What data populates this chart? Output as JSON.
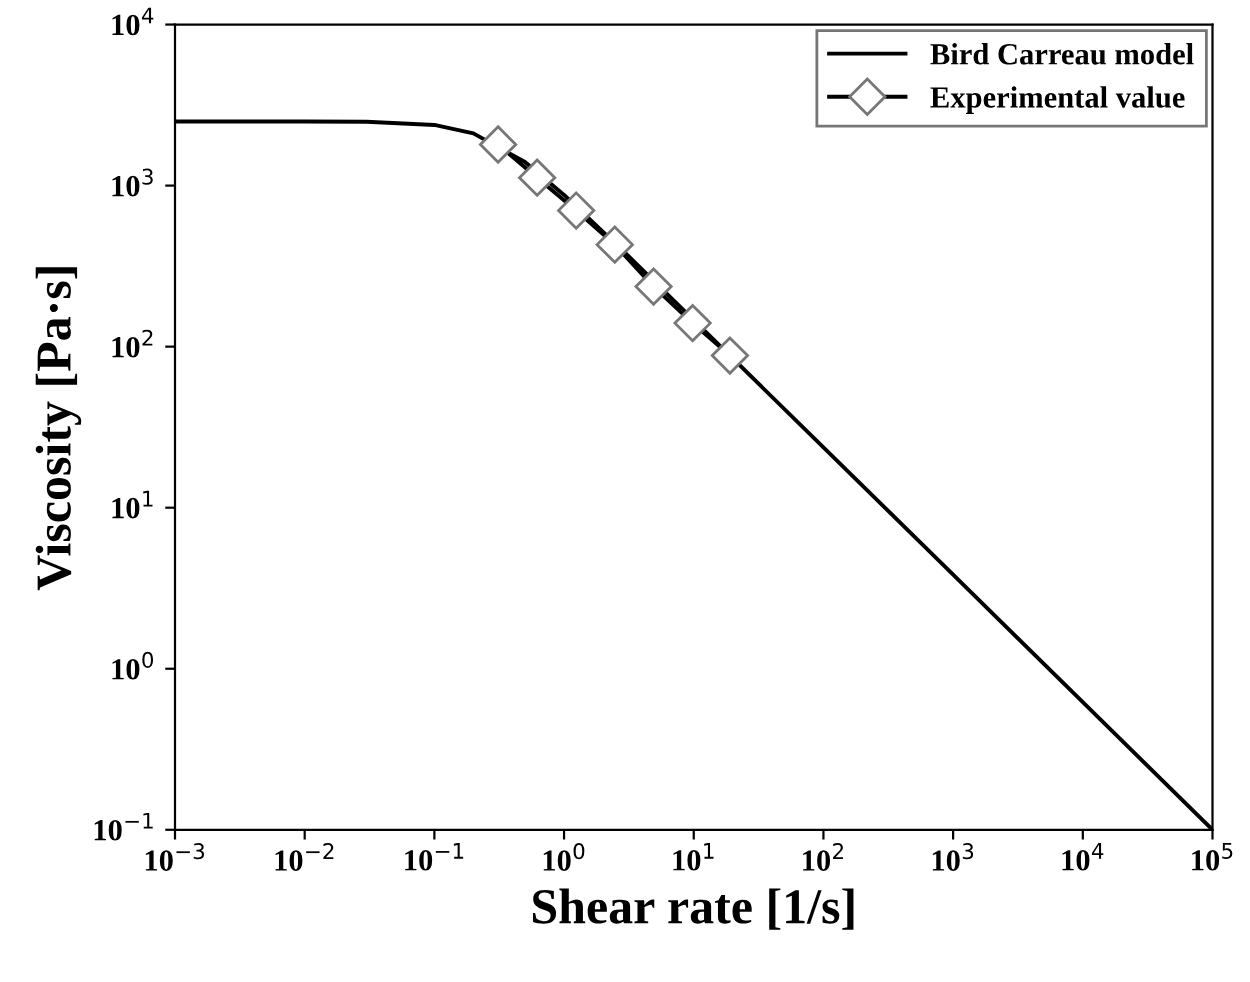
{
  "chart_data": {
    "type": "line",
    "xlabel": "Shear rate [1/s]",
    "ylabel": "Viscosity [Pa·s]",
    "log": "xy",
    "xlim": [
      0.001,
      100000
    ],
    "ylim": [
      0.1,
      10000
    ],
    "xticks": [
      {
        "value": 0.001,
        "label": "10$^{−3}$"
      },
      {
        "value": 0.01,
        "label": "10$^{−2}$"
      },
      {
        "value": 0.1,
        "label": "10$^{−1}$"
      },
      {
        "value": 1,
        "label": "10$^{0}$"
      },
      {
        "value": 10,
        "label": "10$^{1}$"
      },
      {
        "value": 100,
        "label": "10$^{2}$"
      },
      {
        "value": 1000,
        "label": "10$^{3}$"
      },
      {
        "value": 10000,
        "label": "10$^{4}$"
      },
      {
        "value": 100000,
        "label": "10$^{5}$"
      }
    ],
    "yticks": [
      {
        "value": 0.1,
        "label": "10$^{−1}$"
      },
      {
        "value": 1,
        "label": "10$^{0}$"
      },
      {
        "value": 10,
        "label": "10$^{1}$"
      },
      {
        "value": 100,
        "label": "10$^{2}$"
      },
      {
        "value": 1000,
        "label": "10$^{3}$"
      },
      {
        "value": 10000,
        "label": "10$^{4}$"
      }
    ],
    "grid": false,
    "legend": "top right",
    "series": [
      {
        "name": "Bird Carreau model",
        "color": "#000000",
        "marker": "none",
        "x": [
          0.001,
          0.01,
          0.03,
          0.1,
          0.2,
          0.5,
          1,
          3,
          10,
          100,
          1000,
          10000,
          100000
        ],
        "values": [
          2500,
          2500,
          2490,
          2380,
          2110,
          1400,
          875,
          378,
          146,
          23.7,
          3.84,
          0.62,
          0.1
        ]
      },
      {
        "name": "Experimental value",
        "color": "#000000",
        "marker": "diamond",
        "x": [
          0.31,
          0.62,
          1.24,
          2.46,
          4.9,
          9.8,
          19
        ],
        "values": [
          1800,
          1120,
          700,
          430,
          236,
          140,
          88
        ]
      }
    ]
  }
}
